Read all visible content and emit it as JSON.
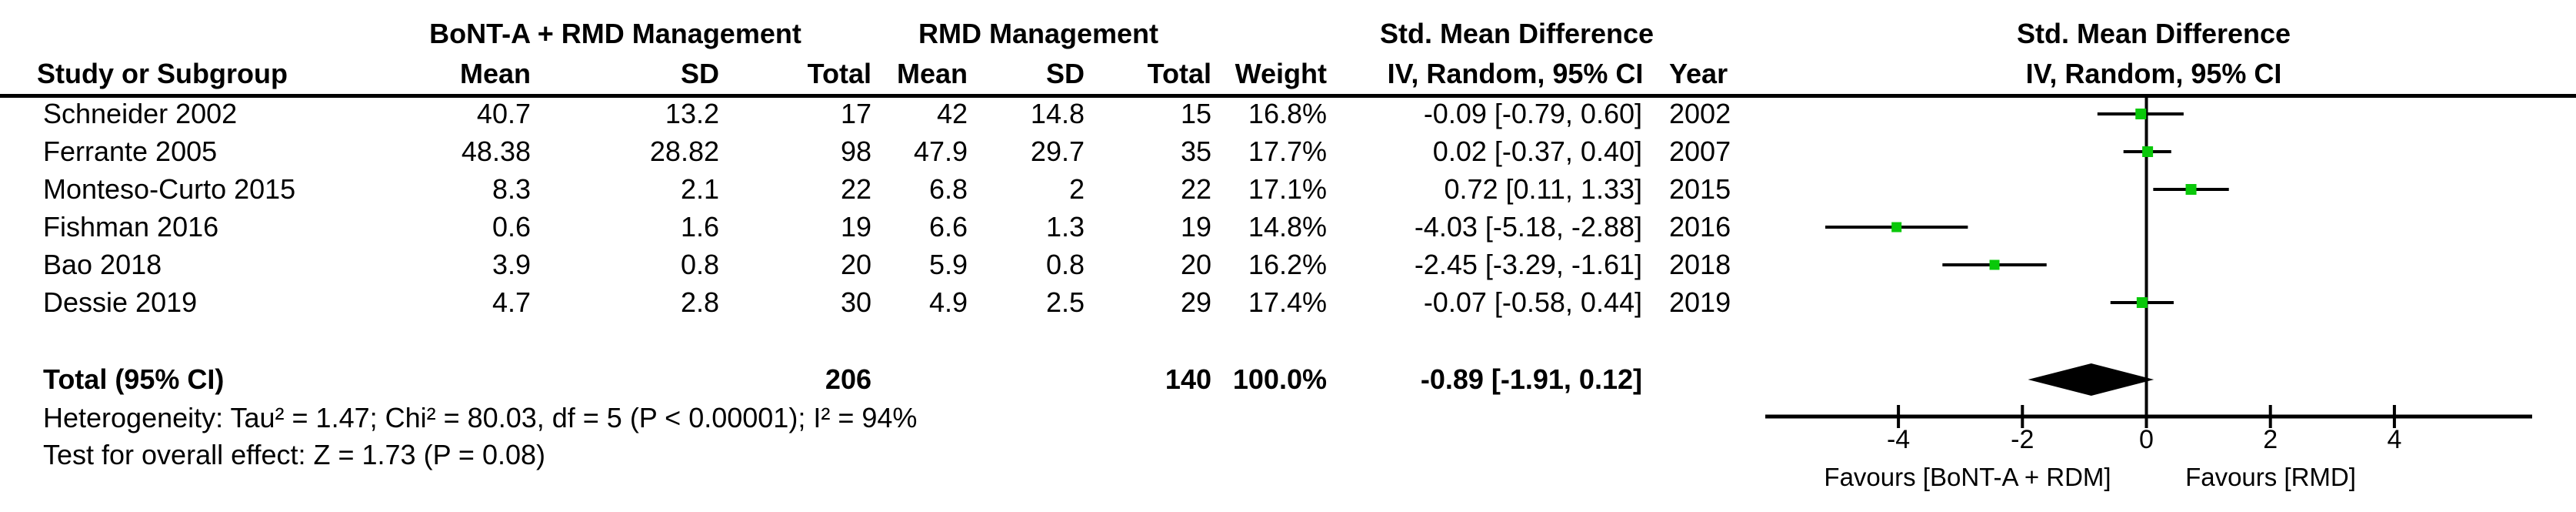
{
  "table": {
    "group1_header": "BoNT-A + RMD Management",
    "group2_header": "RMD Management",
    "effect_header_table": "Std. Mean Difference",
    "columns": {
      "study": "Study or Subgroup",
      "mean1": "Mean",
      "sd1": "SD",
      "total1": "Total",
      "mean2": "Mean",
      "sd2": "SD",
      "total2": "Total",
      "weight": "Weight",
      "ci": "IV, Random, 95% CI",
      "year": "Year"
    },
    "studies": [
      {
        "name": "Schneider 2002",
        "mean1": "40.7",
        "sd1": "13.2",
        "total1": "17",
        "mean2": "42",
        "sd2": "14.8",
        "total2": "15",
        "weight": "16.8%",
        "ci": "-0.09 [-0.79, 0.60]",
        "year": "2002"
      },
      {
        "name": "Ferrante 2005",
        "mean1": "48.38",
        "sd1": "28.82",
        "total1": "98",
        "mean2": "47.9",
        "sd2": "29.7",
        "total2": "35",
        "weight": "17.7%",
        "ci": "0.02 [-0.37, 0.40]",
        "year": "2007"
      },
      {
        "name": "Monteso-Curto 2015",
        "mean1": "8.3",
        "sd1": "2.1",
        "total1": "22",
        "mean2": "6.8",
        "sd2": "2",
        "total2": "22",
        "weight": "17.1%",
        "ci": "0.72 [0.11, 1.33]",
        "year": "2015"
      },
      {
        "name": "Fishman 2016",
        "mean1": "0.6",
        "sd1": "1.6",
        "total1": "19",
        "mean2": "6.6",
        "sd2": "1.3",
        "total2": "19",
        "weight": "14.8%",
        "ci": "-4.03 [-5.18, -2.88]",
        "year": "2016"
      },
      {
        "name": "Bao 2018",
        "mean1": "3.9",
        "sd1": "0.8",
        "total1": "20",
        "mean2": "5.9",
        "sd2": "0.8",
        "total2": "20",
        "weight": "16.2%",
        "ci": "-2.45 [-3.29, -1.61]",
        "year": "2018"
      },
      {
        "name": "Dessie 2019",
        "mean1": "4.7",
        "sd1": "2.8",
        "total1": "30",
        "mean2": "4.9",
        "sd2": "2.5",
        "total2": "29",
        "weight": "17.4%",
        "ci": "-0.07 [-0.58, 0.44]",
        "year": "2019"
      }
    ],
    "total_row": {
      "label": "Total (95% CI)",
      "total1": "206",
      "total2": "140",
      "weight": "100.0%",
      "ci": "-0.89 [-1.91, 0.12]"
    },
    "heterogeneity": "Heterogeneity: Tau² = 1.47; Chi² = 80.03, df = 5 (P < 0.00001); I² = 94%",
    "overall_effect": "Test for overall effect: Z = 1.73 (P = 0.08)"
  },
  "plot": {
    "header_line1": "Std. Mean Difference",
    "header_line2": "IV, Random, 95% CI",
    "favours_left": "Favours [BoNT-A + RDM]",
    "favours_right": "Favours [RMD]",
    "marker_color": "#0AC80A",
    "diamond_color": "#000000"
  },
  "chart_data": {
    "type": "scatter",
    "title": "Std. Mean Difference IV, Random, 95% CI",
    "xlabel": "Favours [BoNT-A + RDM]  /  Favours [RMD]",
    "x_ticks": [
      -4,
      -2,
      0,
      2,
      4
    ],
    "xlim": [
      -6.15,
      6.2
    ],
    "studies": [
      {
        "name": "Schneider 2002",
        "estimate": -0.09,
        "ci_low": -0.79,
        "ci_high": 0.6,
        "weight_pct": 16.8,
        "year": 2002
      },
      {
        "name": "Ferrante 2005",
        "estimate": 0.02,
        "ci_low": -0.37,
        "ci_high": 0.4,
        "weight_pct": 17.7,
        "year": 2007
      },
      {
        "name": "Monteso-Curto 2015",
        "estimate": 0.72,
        "ci_low": 0.11,
        "ci_high": 1.33,
        "weight_pct": 17.1,
        "year": 2015
      },
      {
        "name": "Fishman 2016",
        "estimate": -4.03,
        "ci_low": -5.18,
        "ci_high": -2.88,
        "weight_pct": 14.8,
        "year": 2016
      },
      {
        "name": "Bao 2018",
        "estimate": -2.45,
        "ci_low": -3.29,
        "ci_high": -1.61,
        "weight_pct": 16.2,
        "year": 2018
      },
      {
        "name": "Dessie 2019",
        "estimate": -0.07,
        "ci_low": -0.58,
        "ci_high": 0.44,
        "weight_pct": 17.4,
        "year": 2019
      }
    ],
    "total": {
      "estimate": -0.89,
      "ci_low": -1.91,
      "ci_high": 0.12,
      "total1": 206,
      "total2": 140,
      "weight_pct": 100.0
    },
    "heterogeneity": {
      "tau2": 1.47,
      "chi2": 80.03,
      "df": 5,
      "p": "< 0.00001",
      "i2_pct": 94
    },
    "overall_effect": {
      "z": 1.73,
      "p": 0.08
    }
  }
}
